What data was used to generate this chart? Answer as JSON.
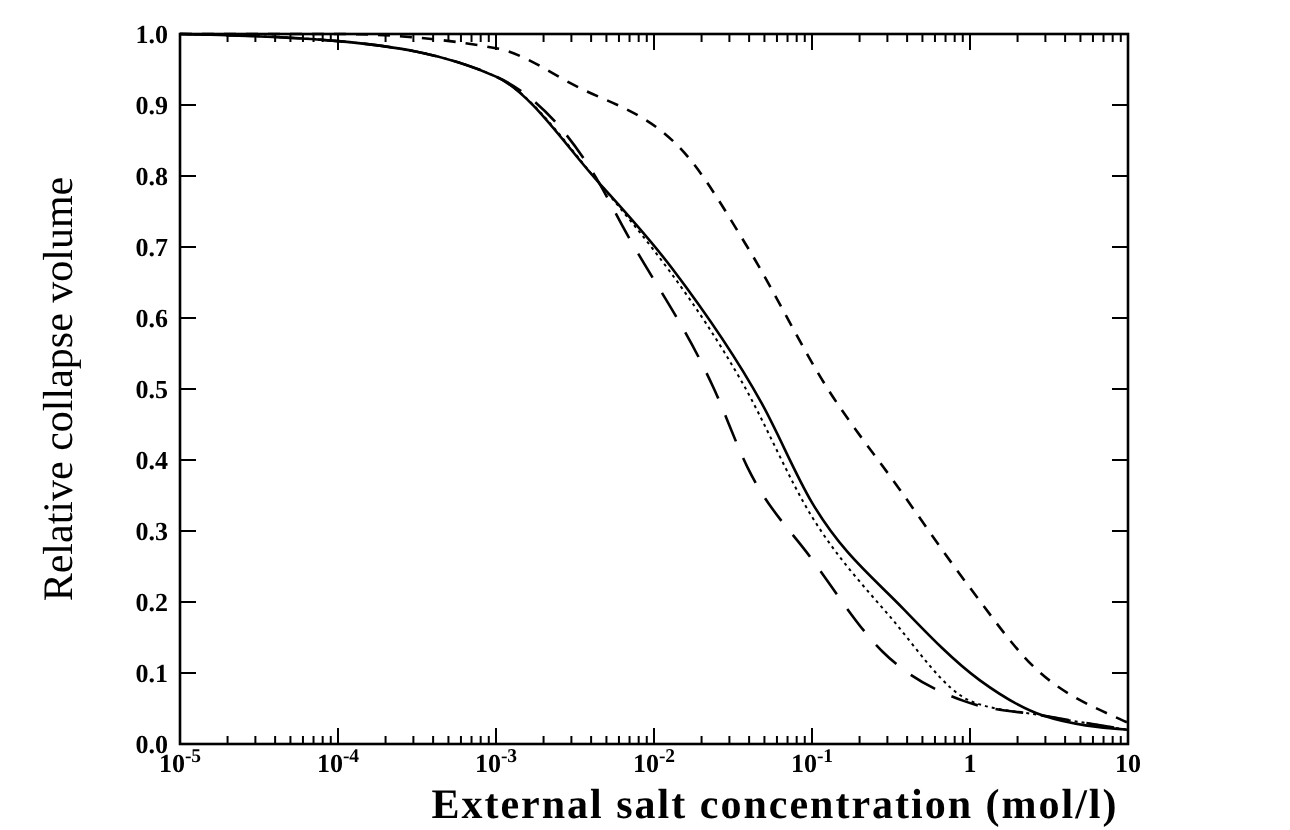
{
  "chart_data": {
    "type": "line",
    "xlabel": "External salt concentration (mol/l)",
    "ylabel": "Relative collapse volume",
    "log": "x",
    "xlim": [
      1e-05,
      10
    ],
    "ylim": [
      0,
      1.0
    ],
    "xticks": [
      {
        "value": 1e-05,
        "label": "10$^{-5}$"
      },
      {
        "value": 0.0001,
        "label": "10$^{-4}$"
      },
      {
        "value": 0.001,
        "label": "10$^{-3}$"
      },
      {
        "value": 0.01,
        "label": "10$^{-2}$"
      },
      {
        "value": 0.1,
        "label": "10$^{-1}$"
      },
      1,
      10,
      {
        "value": 2e-05,
        "label": null
      },
      {
        "value": 3e-05,
        "label": null
      },
      {
        "value": 4e-05,
        "label": null
      },
      {
        "value": 5e-05,
        "label": null
      },
      {
        "value": 6e-05,
        "label": null
      },
      {
        "value": 7e-05,
        "label": null
      },
      {
        "value": 8e-05,
        "label": null
      },
      {
        "value": 9e-05,
        "label": null
      },
      {
        "value": 0.0002,
        "label": null
      },
      {
        "value": 0.0003,
        "label": null
      },
      {
        "value": 0.0004,
        "label": null
      },
      {
        "value": 0.0005,
        "label": null
      },
      {
        "value": 0.0006,
        "label": null
      },
      {
        "value": 0.0007,
        "label": null
      },
      {
        "value": 0.0008,
        "label": null
      },
      {
        "value": 0.0009,
        "label": null
      },
      {
        "value": 0.002,
        "label": null
      },
      {
        "value": 0.003,
        "label": null
      },
      {
        "value": 0.004,
        "label": null
      },
      {
        "value": 0.005,
        "label": null
      },
      {
        "value": 0.006,
        "label": null
      },
      {
        "value": 0.007,
        "label": null
      },
      {
        "value": 0.008,
        "label": null
      },
      {
        "value": 0.009,
        "label": null
      },
      {
        "value": 0.02,
        "label": null
      },
      {
        "value": 0.03,
        "label": null
      },
      {
        "value": 0.04,
        "label": null
      },
      {
        "value": 0.05,
        "label": null
      },
      {
        "value": 0.06,
        "label": null
      },
      {
        "value": 0.07,
        "label": null
      },
      {
        "value": 0.08,
        "label": null
      },
      {
        "value": 0.09,
        "label": null
      },
      {
        "value": 0.2,
        "label": null
      },
      {
        "value": 0.3,
        "label": null
      },
      {
        "value": 0.4,
        "label": null
      },
      {
        "value": 0.5,
        "label": null
      },
      {
        "value": 0.6,
        "label": null
      },
      {
        "value": 0.7,
        "label": null
      },
      {
        "value": 0.8,
        "label": null
      },
      {
        "value": 0.9,
        "label": null
      },
      {
        "value": 2,
        "label": null
      },
      {
        "value": 3,
        "label": null
      },
      {
        "value": 4,
        "label": null
      },
      {
        "value": 5,
        "label": null
      },
      {
        "value": 6,
        "label": null
      },
      {
        "value": 7,
        "label": null
      },
      {
        "value": 8,
        "label": null
      },
      {
        "value": 9,
        "label": null
      }
    ],
    "yticks": [
      {
        "value": 0,
        "label": "0.0"
      },
      0.1,
      0.2,
      0.3,
      0.4,
      0.5,
      0.6,
      0.7,
      0.8,
      0.9,
      {
        "value": 1,
        "label": "1.0"
      }
    ],
    "grid": false,
    "marker": "none",
    "series": [
      {
        "color": "#000000",
        "line_style": "solid",
        "x": [
          1e-05,
          0.0001,
          0.001,
          0.0045,
          0.013,
          0.048,
          0.1,
          0.38,
          1.15,
          2.9,
          10
        ],
        "values": [
          1.0,
          0.99,
          0.94,
          0.79,
          0.67,
          0.48,
          0.34,
          0.19,
          0.09,
          0.04,
          0.02
        ]
      },
      {
        "color": "#000000",
        "line_style": "dotted",
        "x": [
          1e-05,
          0.0001,
          0.001,
          0.0045,
          0.036,
          0.1,
          0.31,
          1.02,
          2.9,
          10
        ],
        "values": [
          1.0,
          0.99,
          0.94,
          0.79,
          0.51,
          0.32,
          0.18,
          0.06,
          0.04,
          0.02
        ]
      },
      {
        "color": "#000000",
        "line_style": "long-dashed",
        "x": [
          1e-05,
          0.0001,
          0.001,
          0.0045,
          0.0063,
          0.024,
          0.039,
          0.1,
          0.28,
          0.93,
          2.9,
          10
        ],
        "values": [
          1.0,
          0.99,
          0.94,
          0.79,
          0.73,
          0.5,
          0.39,
          0.26,
          0.13,
          0.06,
          0.04,
          0.02
        ]
      },
      {
        "color": "#000000",
        "line_style": "dashed",
        "x": [
          1e-05,
          0.0001,
          0.001,
          0.003,
          0.0174,
          0.039,
          0.126,
          0.355,
          1.0,
          2.5,
          8.9,
          10
        ],
        "values": [
          1.0,
          1.0,
          0.98,
          0.93,
          0.82,
          0.7,
          0.5,
          0.36,
          0.22,
          0.11,
          0.035,
          0.03
        ]
      }
    ]
  }
}
